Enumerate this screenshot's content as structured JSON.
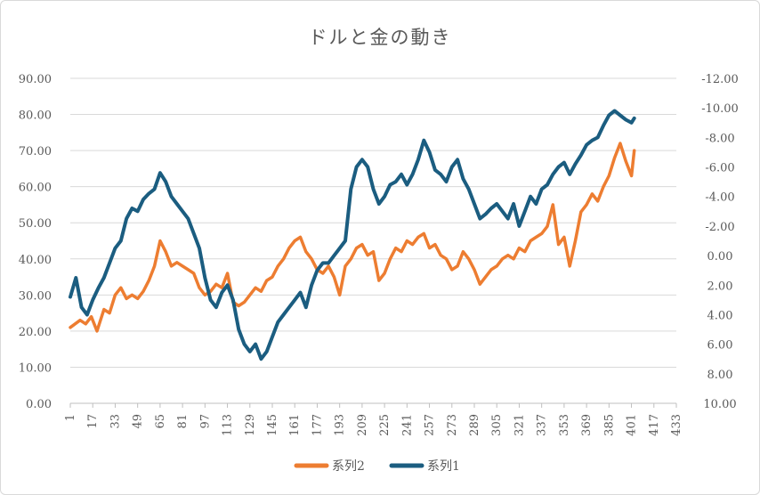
{
  "chart_data": {
    "type": "line",
    "title": "ドルと金の動き",
    "x_ticks": [
      "1",
      "17",
      "33",
      "49",
      "65",
      "81",
      "97",
      "113",
      "129",
      "145",
      "161",
      "177",
      "193",
      "209",
      "225",
      "241",
      "257",
      "273",
      "289",
      "305",
      "321",
      "337",
      "353",
      "369",
      "385",
      "401",
      "417",
      "433"
    ],
    "x_range": [
      1,
      433
    ],
    "y_left": {
      "range": [
        0,
        90
      ],
      "ticks": [
        "0.00",
        "10.00",
        "20.00",
        "30.00",
        "40.00",
        "50.00",
        "60.00",
        "70.00",
        "80.00",
        "90.00"
      ]
    },
    "y_right": {
      "range": [
        10,
        -12
      ],
      "reversed": true,
      "ticks": [
        "10.00",
        "8.00",
        "6.00",
        "4.00",
        "2.00",
        "0.00",
        "-2.00",
        "-4.00",
        "-6.00",
        "-8.00",
        "-10.00",
        "-12.00"
      ]
    },
    "series": [
      {
        "name": "系列2",
        "axis": "left",
        "color": "#ED7D31",
        "x": [
          1,
          8,
          12,
          16,
          20,
          25,
          29,
          33,
          37,
          41,
          45,
          49,
          53,
          57,
          61,
          65,
          69,
          73,
          77,
          81,
          85,
          89,
          93,
          97,
          101,
          105,
          109,
          113,
          117,
          121,
          125,
          129,
          133,
          137,
          141,
          145,
          149,
          153,
          157,
          161,
          165,
          169,
          173,
          177,
          181,
          185,
          189,
          193,
          197,
          201,
          205,
          209,
          213,
          217,
          221,
          225,
          229,
          233,
          237,
          241,
          245,
          249,
          253,
          257,
          261,
          265,
          269,
          273,
          277,
          281,
          285,
          289,
          293,
          297,
          301,
          305,
          309,
          313,
          317,
          321,
          325,
          329,
          333,
          337,
          341,
          345,
          349,
          353,
          357,
          361,
          365,
          369,
          373,
          377,
          381,
          385,
          389,
          393,
          397,
          401,
          403
        ],
        "values": [
          21,
          23,
          22,
          24,
          20,
          26,
          25,
          30,
          32,
          29,
          30,
          29,
          31,
          34,
          38,
          45,
          42,
          38,
          39,
          38,
          37,
          36,
          32,
          30,
          31,
          33,
          32,
          36,
          28,
          27,
          28,
          30,
          32,
          31,
          34,
          35,
          38,
          40,
          43,
          45,
          46,
          42,
          40,
          37,
          36,
          38,
          35,
          30,
          38,
          40,
          43,
          44,
          41,
          42,
          34,
          36,
          40,
          43,
          42,
          45,
          44,
          46,
          47,
          43,
          44,
          41,
          40,
          37,
          38,
          42,
          40,
          37,
          33,
          35,
          37,
          38,
          40,
          41,
          40,
          43,
          42,
          45,
          46,
          47,
          49,
          55,
          44,
          46,
          38,
          45,
          53,
          55,
          58,
          56,
          60,
          63,
          68,
          72,
          67,
          63,
          70
        ]
      },
      {
        "name": "系列1",
        "axis": "right",
        "color": "#1B5D80",
        "x": [
          1,
          5,
          9,
          13,
          17,
          21,
          25,
          29,
          33,
          37,
          41,
          45,
          49,
          53,
          57,
          61,
          65,
          69,
          73,
          77,
          81,
          85,
          89,
          93,
          97,
          101,
          105,
          109,
          113,
          117,
          121,
          125,
          129,
          133,
          137,
          141,
          145,
          149,
          153,
          157,
          161,
          165,
          169,
          173,
          177,
          181,
          185,
          189,
          193,
          197,
          201,
          205,
          209,
          213,
          217,
          221,
          225,
          229,
          233,
          237,
          241,
          245,
          249,
          253,
          257,
          261,
          265,
          269,
          273,
          277,
          281,
          285,
          289,
          293,
          297,
          301,
          305,
          309,
          313,
          317,
          321,
          325,
          329,
          333,
          337,
          341,
          345,
          349,
          353,
          357,
          361,
          365,
          369,
          373,
          377,
          381,
          385,
          389,
          393,
          397,
          401,
          403
        ],
        "values": [
          2.8,
          1.5,
          3.5,
          4.0,
          3.0,
          2.2,
          1.5,
          0.5,
          -0.5,
          -1.0,
          -2.5,
          -3.2,
          -3.0,
          -3.8,
          -4.2,
          -4.5,
          -5.6,
          -5.0,
          -4.0,
          -3.5,
          -3.0,
          -2.5,
          -1.5,
          -0.5,
          1.5,
          3.0,
          3.5,
          2.5,
          2.0,
          3.0,
          5.0,
          6.0,
          6.5,
          6.0,
          7.0,
          6.5,
          5.5,
          4.5,
          4.0,
          3.5,
          3.0,
          2.5,
          3.5,
          2.0,
          1.0,
          0.5,
          0.5,
          0.0,
          -0.5,
          -1.0,
          -4.5,
          -6.0,
          -6.5,
          -6.0,
          -4.5,
          -3.5,
          -4.0,
          -4.8,
          -5.0,
          -5.5,
          -4.8,
          -5.5,
          -6.5,
          -7.8,
          -7.0,
          -5.8,
          -5.5,
          -5.0,
          -6.0,
          -6.5,
          -5.2,
          -4.5,
          -3.5,
          -2.5,
          -2.8,
          -3.2,
          -3.5,
          -3.0,
          -2.5,
          -3.5,
          -2.0,
          -3.0,
          -4.0,
          -3.5,
          -4.5,
          -4.8,
          -5.5,
          -6.0,
          -6.3,
          -5.5,
          -6.2,
          -6.8,
          -7.5,
          -7.8,
          -8.0,
          -8.8,
          -9.5,
          -9.8,
          -9.5,
          -9.2,
          -9.0,
          -9.3
        ]
      }
    ],
    "legend": [
      {
        "name": "系列2",
        "color": "#ED7D31"
      },
      {
        "name": "系列1",
        "color": "#1B5D80"
      }
    ],
    "legend_position": "bottom",
    "grid": true
  }
}
